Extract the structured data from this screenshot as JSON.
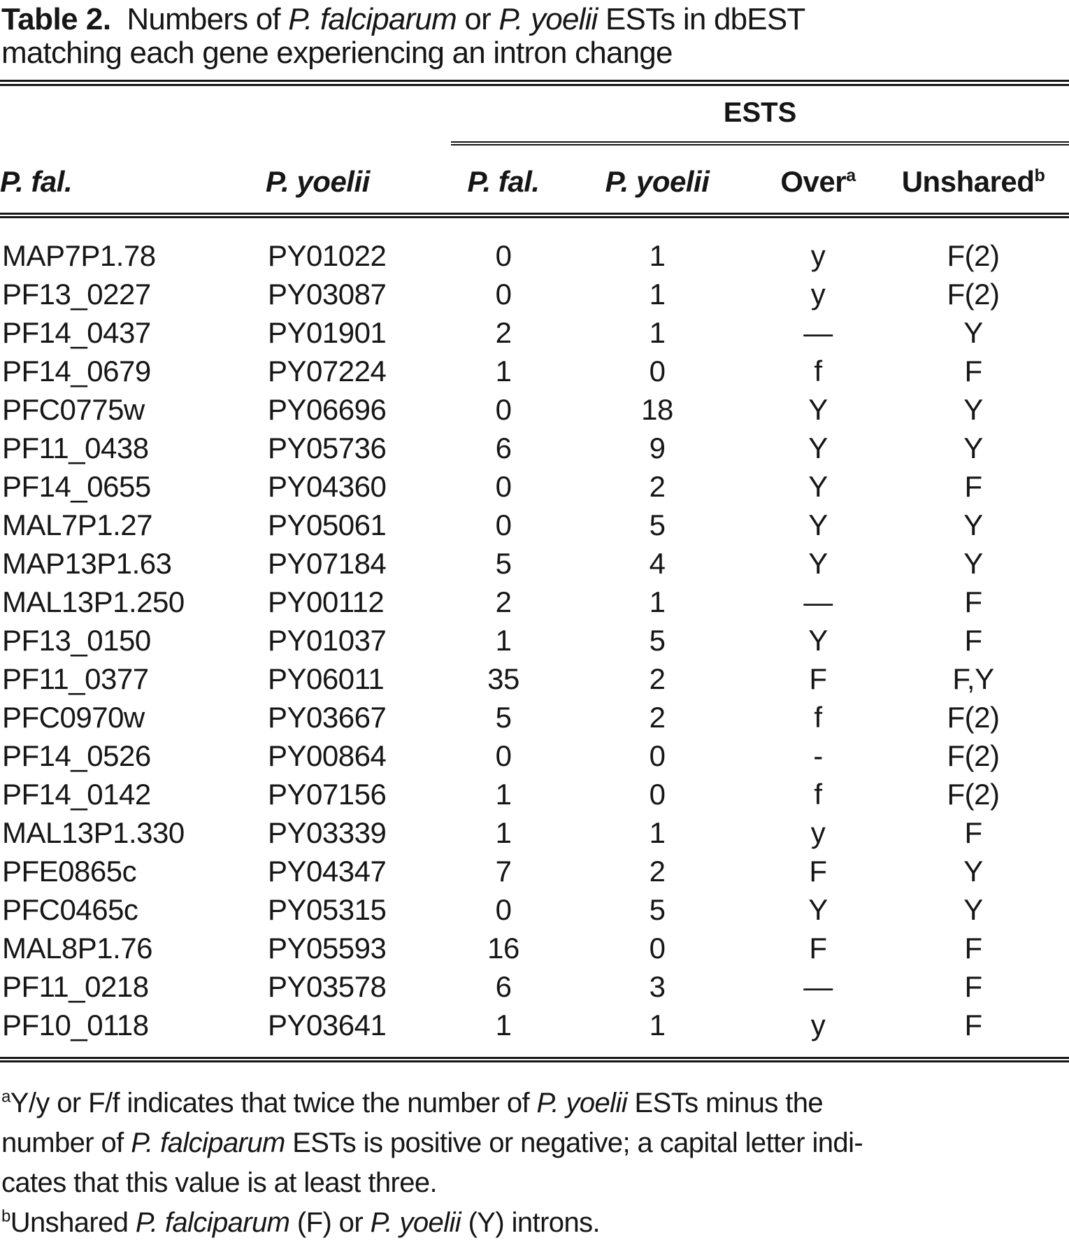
{
  "colors": {
    "background": "#ffffff",
    "text": "#161616",
    "rule": "#161616"
  },
  "title": {
    "segments": [
      {
        "t": "Table 2.",
        "b": true
      },
      {
        "t": "  Numbers of "
      },
      {
        "t": "P. falciparum",
        "i": true
      },
      {
        "t": " or "
      },
      {
        "t": "P. yoelii",
        "i": true
      },
      {
        "t": " ESTs in dbEST"
      },
      {
        "br": true
      },
      {
        "t": "matching each gene experiencing an intron change"
      }
    ]
  },
  "table": {
    "group_label": "ESTS",
    "columns": [
      {
        "id": "pfal-gene",
        "label": "P. fal.",
        "italic": true,
        "align": "left"
      },
      {
        "id": "pyoelii-gene",
        "label": "P. yoelii",
        "italic": true,
        "align": "left"
      },
      {
        "id": "pfal-ests",
        "label": "P. fal.",
        "italic": true,
        "align": "center"
      },
      {
        "id": "pyoelii-ests",
        "label": "P. yoelii",
        "italic": true,
        "align": "center"
      },
      {
        "id": "over",
        "label": "Over",
        "italic": false,
        "align": "center",
        "sup": "a"
      },
      {
        "id": "unshared",
        "label": "Unshared",
        "italic": false,
        "align": "center",
        "sup": "b"
      }
    ],
    "rows": [
      [
        "MAP7P1.78",
        "PY01022",
        "0",
        "1",
        "y",
        "F(2)"
      ],
      [
        "PF13_0227",
        "PY03087",
        "0",
        "1",
        "y",
        "F(2)"
      ],
      [
        "PF14_0437",
        "PY01901",
        "2",
        "1",
        "—",
        "Y"
      ],
      [
        "PF14_0679",
        "PY07224",
        "1",
        "0",
        "f",
        "F"
      ],
      [
        "PFC0775w",
        "PY06696",
        "0",
        "18",
        "Y",
        "Y"
      ],
      [
        "PF11_0438",
        "PY05736",
        "6",
        "9",
        "Y",
        "Y"
      ],
      [
        "PF14_0655",
        "PY04360",
        "0",
        "2",
        "Y",
        "F"
      ],
      [
        "MAL7P1.27",
        "PY05061",
        "0",
        "5",
        "Y",
        "Y"
      ],
      [
        "MAP13P1.63",
        "PY07184",
        "5",
        "4",
        "Y",
        "Y"
      ],
      [
        "MAL13P1.250",
        "PY00112",
        "2",
        "1",
        "—",
        "F"
      ],
      [
        "PF13_0150",
        "PY01037",
        "1",
        "5",
        "Y",
        "F"
      ],
      [
        "PF11_0377",
        "PY06011",
        "35",
        "2",
        "F",
        "F,Y"
      ],
      [
        "PFC0970w",
        "PY03667",
        "5",
        "2",
        "f",
        "F(2)"
      ],
      [
        "PF14_0526",
        "PY00864",
        "0",
        "0",
        "-",
        "F(2)"
      ],
      [
        "PF14_0142",
        "PY07156",
        "1",
        "0",
        "f",
        "F(2)"
      ],
      [
        "MAL13P1.330",
        "PY03339",
        "1",
        "1",
        "y",
        "F"
      ],
      [
        "PFE0865c",
        "PY04347",
        "7",
        "2",
        "F",
        "Y"
      ],
      [
        "PFC0465c",
        "PY05315",
        "0",
        "5",
        "Y",
        "Y"
      ],
      [
        "MAL8P1.76",
        "PY05593",
        "16",
        "0",
        "F",
        "F"
      ],
      [
        "PF11_0218",
        "PY03578",
        "6",
        "3",
        "—",
        "F"
      ],
      [
        "PF10_0118",
        "PY03641",
        "1",
        "1",
        "y",
        "F"
      ]
    ]
  },
  "footnotes": {
    "a": [
      {
        "t": "a",
        "sup": true
      },
      {
        "t": "Y/y or F/f indicates that twice the number of "
      },
      {
        "t": "P. yoelii",
        "i": true
      },
      {
        "t": " ESTs minus the"
      },
      {
        "br": true
      },
      {
        "t": "number of "
      },
      {
        "t": "P. falciparum",
        "i": true
      },
      {
        "t": " ESTs is positive or negative; a capital letter indi-"
      },
      {
        "br": true
      },
      {
        "t": "cates that this value is at least three."
      }
    ],
    "b": [
      {
        "t": "b",
        "sup": true
      },
      {
        "t": "Unshared "
      },
      {
        "t": "P. falciparum",
        "i": true
      },
      {
        "t": " (F) or "
      },
      {
        "t": "P. yoelii",
        "i": true
      },
      {
        "t": " (Y) introns."
      }
    ]
  }
}
